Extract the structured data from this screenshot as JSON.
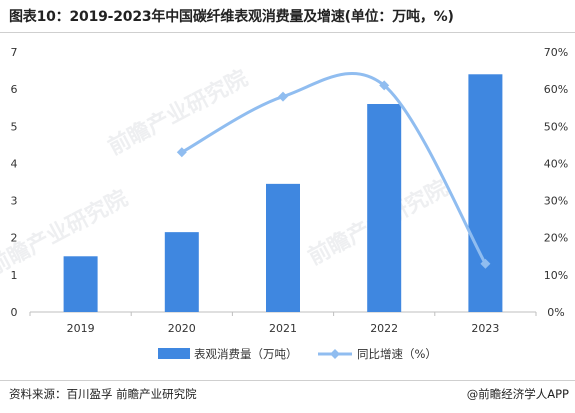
{
  "header": {
    "title": "图表10：2019-2023年中国碳纤维表观消费量及增速(单位：万吨，%)"
  },
  "footer": {
    "source": "资料来源：百川盈孚 前瞻产业研究院",
    "brand": "@前瞻经济学人APP"
  },
  "watermark": {
    "text": "前瞻产业研究院"
  },
  "colors": {
    "bar": "#3f87e0",
    "line": "#90bdf0",
    "axis": "#bfbfbf",
    "text": "#333333"
  },
  "chart_data": {
    "type": "bar+line",
    "categories": [
      "2019",
      "2020",
      "2021",
      "2022",
      "2023"
    ],
    "series": [
      {
        "name": "表观消费量（万吨）",
        "type": "bar",
        "axis": "left",
        "values": [
          1.5,
          2.15,
          3.45,
          5.6,
          6.4
        ]
      },
      {
        "name": "同比增速（%）",
        "type": "line",
        "axis": "right",
        "smooth": true,
        "values": [
          null,
          43,
          58,
          61,
          13
        ]
      }
    ],
    "y_left": {
      "ticks": [
        "0",
        "1",
        "2",
        "3",
        "4",
        "5",
        "6",
        "7"
      ],
      "lim": [
        0,
        7
      ]
    },
    "y_right": {
      "ticks": [
        "0%",
        "10%",
        "20%",
        "30%",
        "40%",
        "50%",
        "60%",
        "70%"
      ],
      "lim": [
        0,
        70
      ]
    },
    "legend_position": "bottom",
    "grid": false
  }
}
